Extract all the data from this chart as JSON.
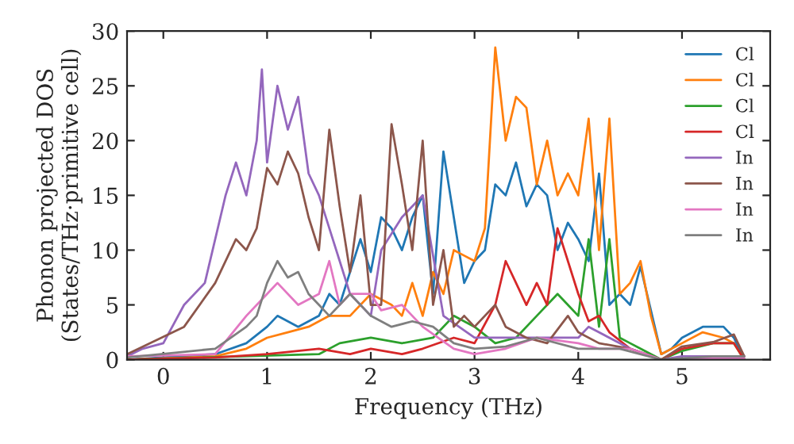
{
  "chart_data": {
    "type": "line",
    "xlabel": "Frequency (THz)",
    "ylabel": "Phonon projected DOS\n(States/THz·primitive cell)",
    "xlim": [
      -0.35,
      5.85
    ],
    "ylim": [
      0,
      30
    ],
    "xticks": [
      0,
      1,
      2,
      3,
      4,
      5
    ],
    "yticks": [
      0,
      5,
      10,
      15,
      20,
      25,
      30
    ],
    "grid": false,
    "legend": "top right",
    "series": [
      {
        "name": "Cl",
        "color": "#1f77b4",
        "x": [
          -0.35,
          0.5,
          0.8,
          1.0,
          1.1,
          1.3,
          1.5,
          1.6,
          1.7,
          1.9,
          2.0,
          2.1,
          2.2,
          2.3,
          2.4,
          2.5,
          2.6,
          2.7,
          2.8,
          2.9,
          3.0,
          3.1,
          3.2,
          3.3,
          3.4,
          3.5,
          3.6,
          3.7,
          3.8,
          3.9,
          4.0,
          4.1,
          4.2,
          4.3,
          4.4,
          4.5,
          4.6,
          4.7,
          4.8,
          4.9,
          5.0,
          5.2,
          5.4,
          5.5,
          5.6
        ],
        "values": [
          0,
          0.5,
          1.5,
          3,
          4,
          3,
          4,
          6,
          5,
          11,
          8,
          13,
          12,
          10,
          13,
          15,
          6,
          19,
          13,
          7,
          9,
          10,
          16,
          15,
          18,
          14,
          16,
          15,
          10,
          12.5,
          11,
          9,
          17,
          5,
          6,
          5,
          8.5,
          null,
          0.5,
          1,
          2,
          3,
          3,
          2,
          0
        ]
      },
      {
        "name": "Cl",
        "color": "#ff7f0e",
        "x": [
          -0.35,
          0.5,
          0.8,
          1.0,
          1.2,
          1.4,
          1.6,
          1.8,
          2.0,
          2.2,
          2.3,
          2.4,
          2.5,
          2.6,
          2.7,
          2.8,
          2.9,
          3.0,
          3.1,
          3.2,
          3.3,
          3.4,
          3.5,
          3.6,
          3.7,
          3.8,
          3.9,
          4.0,
          4.1,
          4.2,
          4.3,
          4.4,
          4.5,
          4.6,
          4.7,
          4.8,
          5.0,
          5.2,
          5.4,
          5.5,
          5.6
        ],
        "values": [
          0,
          0.3,
          1,
          2,
          2.5,
          3,
          4,
          4,
          6,
          5,
          4,
          7,
          4,
          8,
          6,
          10,
          9.5,
          9,
          12,
          28.5,
          20,
          24,
          23,
          16,
          20,
          15,
          17,
          15,
          22,
          10,
          22,
          6,
          7,
          9,
          4,
          0.5,
          1.5,
          2.5,
          2,
          1.5,
          0
        ]
      },
      {
        "name": "Cl",
        "color": "#2ca02c",
        "x": [
          -0.35,
          1.5,
          1.7,
          2.0,
          2.3,
          2.6,
          2.8,
          3.0,
          3.2,
          3.4,
          3.6,
          3.8,
          3.9,
          4.0,
          4.1,
          4.2,
          4.3,
          4.4,
          4.5,
          4.6,
          4.8,
          5.0,
          5.3,
          5.5,
          5.6
        ],
        "values": [
          0,
          0.5,
          1.5,
          2,
          1.5,
          2,
          4,
          3,
          1.5,
          2,
          4,
          6,
          5,
          4,
          11,
          3,
          11,
          2,
          1.5,
          1,
          0,
          0.8,
          1.5,
          1.5,
          0
        ]
      },
      {
        "name": "Cl",
        "color": "#d62728",
        "x": [
          -0.35,
          0.5,
          1.0,
          1.5,
          1.8,
          2.0,
          2.3,
          2.5,
          2.8,
          3.0,
          3.2,
          3.3,
          3.4,
          3.5,
          3.6,
          3.7,
          3.8,
          3.9,
          4.0,
          4.1,
          4.2,
          4.3,
          4.5,
          4.8,
          5.0,
          5.3,
          5.5,
          5.6
        ],
        "values": [
          0,
          0.2,
          0.5,
          1,
          0.5,
          1,
          0.5,
          1,
          2,
          1.5,
          5,
          9,
          7,
          5,
          7,
          5,
          12,
          9,
          6,
          3.5,
          4,
          2.5,
          1,
          0,
          1,
          1.5,
          1.5,
          0
        ]
      },
      {
        "name": "In",
        "color": "#9467bd",
        "x": [
          -0.35,
          -0.2,
          0.0,
          0.2,
          0.4,
          0.6,
          0.7,
          0.8,
          0.9,
          0.95,
          1.0,
          1.1,
          1.2,
          1.3,
          1.4,
          1.5,
          1.6,
          1.7,
          1.8,
          1.9,
          2.0,
          2.1,
          2.3,
          2.5,
          2.7,
          3.0,
          3.5,
          4.0,
          4.1,
          4.5,
          4.8,
          5.0,
          5.6
        ],
        "values": [
          0.3,
          1,
          1.5,
          5,
          7,
          15,
          18,
          15,
          20,
          26.5,
          18,
          25,
          21,
          24,
          17,
          15,
          12,
          9,
          6,
          5,
          4,
          10,
          13,
          15,
          4,
          2,
          2,
          2,
          3,
          1,
          0,
          0.3,
          0.3
        ]
      },
      {
        "name": "In",
        "color": "#8c564b",
        "x": [
          -0.35,
          0.2,
          0.5,
          0.7,
          0.8,
          0.9,
          1.0,
          1.1,
          1.2,
          1.3,
          1.4,
          1.5,
          1.6,
          1.7,
          1.8,
          1.9,
          2.0,
          2.1,
          2.2,
          2.3,
          2.4,
          2.5,
          2.6,
          2.7,
          2.8,
          2.9,
          3.0,
          3.2,
          3.3,
          3.5,
          3.7,
          3.9,
          4.0,
          4.2,
          4.5,
          4.8,
          5.0,
          5.3,
          5.5,
          5.6
        ],
        "values": [
          0.5,
          3,
          7,
          11,
          10,
          12,
          17.5,
          16,
          19,
          17,
          13,
          10,
          21,
          14,
          8,
          15,
          5,
          5,
          21.5,
          16,
          10,
          20,
          5,
          10,
          3,
          4,
          3,
          5,
          3,
          2,
          1.5,
          4,
          2.5,
          1.5,
          1,
          0,
          1.2,
          1.6,
          2.3,
          0.3
        ]
      },
      {
        "name": "In",
        "color": "#e377c2",
        "x": [
          -0.35,
          0.5,
          0.8,
          1.0,
          1.1,
          1.3,
          1.5,
          1.6,
          1.7,
          1.8,
          2.0,
          2.1,
          2.3,
          2.5,
          2.8,
          3.0,
          3.3,
          3.6,
          4.0,
          4.2,
          4.5,
          4.8,
          5.2,
          5.6
        ],
        "values": [
          0.3,
          0.5,
          4,
          6,
          7,
          5,
          6,
          9,
          5,
          6,
          6,
          4.5,
          5,
          3,
          1,
          0.5,
          1,
          2,
          1.5,
          1,
          1,
          0,
          0.1,
          0.1
        ]
      },
      {
        "name": "In",
        "color": "#7f7f7f",
        "x": [
          -0.35,
          0.5,
          0.8,
          0.9,
          1.0,
          1.1,
          1.2,
          1.3,
          1.4,
          1.5,
          1.6,
          1.8,
          2.0,
          2.2,
          2.4,
          2.6,
          2.8,
          3.0,
          3.3,
          3.6,
          4.0,
          4.4,
          4.8,
          5.3,
          5.6
        ],
        "values": [
          0.2,
          1,
          3,
          4,
          7,
          9,
          7.5,
          8,
          6,
          5,
          4,
          6,
          4,
          3,
          3.5,
          3,
          1.5,
          1,
          1.2,
          2,
          1,
          1,
          0,
          0.3,
          0.3
        ]
      }
    ]
  }
}
